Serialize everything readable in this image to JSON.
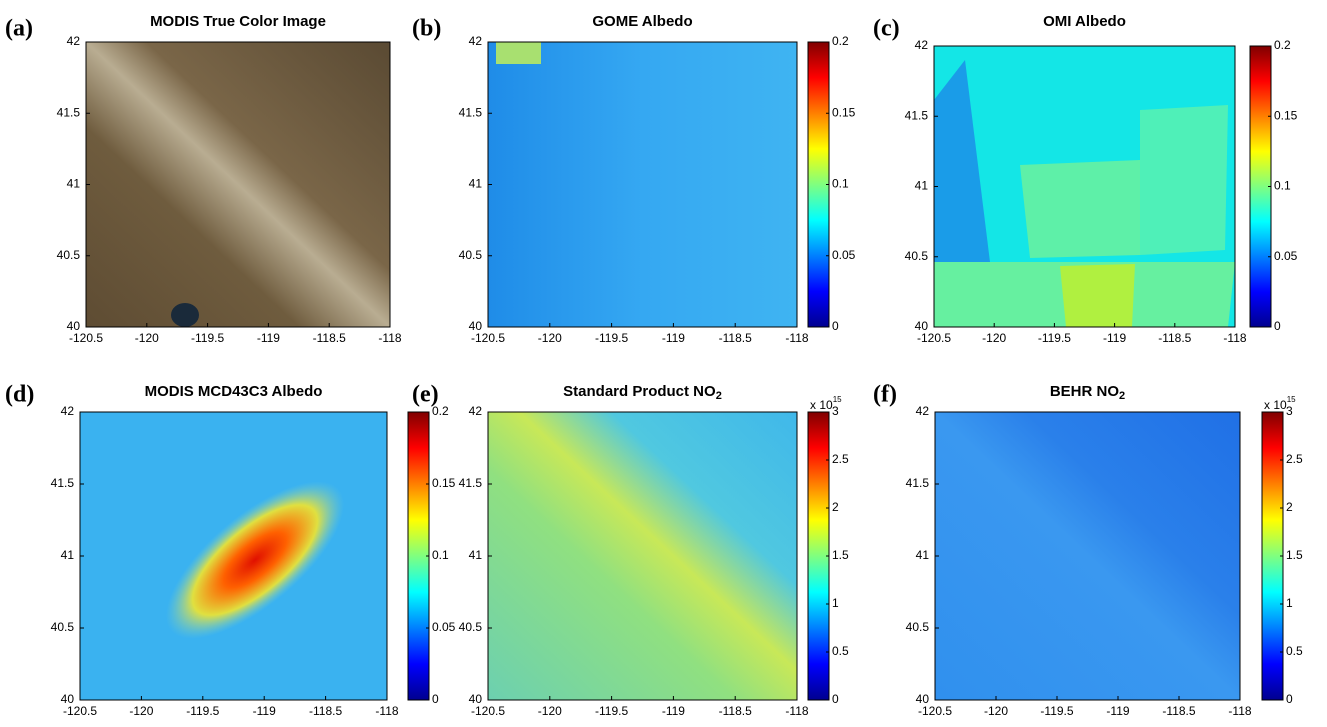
{
  "chart_data": [
    {
      "type": "image",
      "panel_label": "(a)",
      "title": "MODIS True Color Image",
      "xlim": [
        -120.5,
        -118
      ],
      "ylim": [
        40,
        42
      ],
      "xticks": [
        -120.5,
        -120,
        -119.5,
        -119,
        -118.5,
        -118
      ],
      "yticks": [
        40,
        40.5,
        41,
        41.5,
        42
      ]
    },
    {
      "type": "heatmap",
      "panel_label": "(b)",
      "title": "GOME Albedo",
      "xlim": [
        -120.5,
        -118
      ],
      "ylim": [
        40,
        42
      ],
      "xticks": [
        -120.5,
        -120,
        -119.5,
        -119,
        -118.5,
        -118
      ],
      "yticks": [
        40,
        40.5,
        41,
        41.5,
        42
      ],
      "colormap": "jet",
      "clim": [
        0,
        0.2
      ],
      "cticks": [
        0,
        0.05,
        0.1,
        0.15,
        0.2
      ]
    },
    {
      "type": "heatmap",
      "panel_label": "(c)",
      "title": "OMI Albedo",
      "xlim": [
        -120.5,
        -118
      ],
      "ylim": [
        40,
        42
      ],
      "xticks": [
        -120.5,
        -120,
        -119.5,
        -119,
        -118.5,
        -118
      ],
      "yticks": [
        40,
        40.5,
        41,
        41.5,
        42
      ],
      "colormap": "jet",
      "clim": [
        0,
        0.2
      ],
      "cticks": [
        0,
        0.05,
        0.1,
        0.15,
        0.2
      ]
    },
    {
      "type": "heatmap",
      "panel_label": "(d)",
      "title": "MODIS MCD43C3 Albedo",
      "xlim": [
        -120.5,
        -118
      ],
      "ylim": [
        40,
        42
      ],
      "xticks": [
        -120.5,
        -120,
        -119.5,
        -119,
        -118.5,
        -118
      ],
      "yticks": [
        40,
        40.5,
        41,
        41.5,
        42
      ],
      "colormap": "jet",
      "clim": [
        0,
        0.2
      ],
      "cticks": [
        0,
        0.05,
        0.1,
        0.15,
        0.2
      ]
    },
    {
      "type": "heatmap",
      "panel_label": "(e)",
      "title": "Standard Product NO",
      "title_subscript": "2",
      "xlim": [
        -120.5,
        -118
      ],
      "ylim": [
        40,
        42
      ],
      "xticks": [
        -120.5,
        -120,
        -119.5,
        -119,
        -118.5,
        -118
      ],
      "yticks": [
        40,
        40.5,
        41,
        41.5,
        42
      ],
      "colormap": "jet",
      "clim": [
        0,
        3
      ],
      "cticks": [
        0,
        0.5,
        1,
        1.5,
        2,
        2.5,
        3
      ],
      "cmultiplier": "x 10",
      "cmultiplier_exponent": "15"
    },
    {
      "type": "heatmap",
      "panel_label": "(f)",
      "title": "BEHR NO",
      "title_subscript": "2",
      "xlim": [
        -120.5,
        -118
      ],
      "ylim": [
        40,
        42
      ],
      "xticks": [
        -120.5,
        -120,
        -119.5,
        -119,
        -118.5,
        -118
      ],
      "yticks": [
        40,
        40.5,
        41,
        41.5,
        42
      ],
      "colormap": "jet",
      "clim": [
        0,
        3
      ],
      "cticks": [
        0,
        0.5,
        1,
        1.5,
        2,
        2.5,
        3
      ],
      "cmultiplier": "x 10",
      "cmultiplier_exponent": "15"
    }
  ]
}
